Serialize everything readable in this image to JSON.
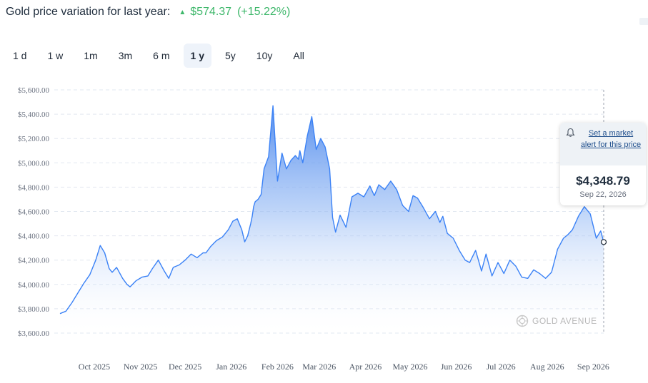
{
  "header": {
    "title": "Gold price variation for last year:",
    "change": "$574.37",
    "change_pct": "(+15.22%)"
  },
  "ranges": [
    {
      "label": "1 d",
      "active": false
    },
    {
      "label": "1 w",
      "active": false
    },
    {
      "label": "1m",
      "active": false
    },
    {
      "label": "3m",
      "active": false
    },
    {
      "label": "6 m",
      "active": false
    },
    {
      "label": "1 y",
      "active": true
    },
    {
      "label": "5y",
      "active": false
    },
    {
      "label": "10y",
      "active": false
    },
    {
      "label": "All",
      "active": false
    }
  ],
  "tooltip": {
    "alert_text": "Set a market alert for this price",
    "price": "$4,348.79",
    "date": "Sep 22, 2026"
  },
  "watermark": "GOLD AVENUE",
  "colors": {
    "line": "#3b82f6",
    "area_top": "#4a86ec",
    "area_bottom": "#ffffff",
    "grid": "#e2e8f0",
    "up": "#3db76a"
  },
  "chart_data": {
    "type": "area",
    "title": "",
    "xlabel": "",
    "ylabel": "",
    "y_ticks": [
      "$3,600.00",
      "$3,800.00",
      "$4,000.00",
      "$4,200.00",
      "$4,400.00",
      "$4,600.00",
      "$4,800.00",
      "$5,000.00",
      "$5,200.00",
      "$5,400.00",
      "$5,600.00"
    ],
    "ylim": [
      3600,
      5600
    ],
    "x_ticks": [
      "Oct 2025",
      "Nov 2025",
      "Dec 2025",
      "Jan 2026",
      "Feb 2026",
      "Mar 2026",
      "Apr 2026",
      "May 2026",
      "Jun 2026",
      "Jul 2026",
      "Aug 2026",
      "Sep 2026"
    ],
    "grid": true,
    "legend": "none",
    "series": [
      {
        "x": [
          "2025-09-22",
          "2025-09-26",
          "2025-09-30",
          "2025-10-04",
          "2025-10-08",
          "2025-10-12",
          "2025-10-16",
          "2025-10-19",
          "2025-10-22",
          "2025-10-25",
          "2025-10-27",
          "2025-10-30",
          "2025-11-03",
          "2025-11-06",
          "2025-11-08",
          "2025-11-12",
          "2025-11-16",
          "2025-11-20",
          "2025-11-23",
          "2025-11-27",
          "2025-12-01",
          "2025-12-04",
          "2025-12-07",
          "2025-12-11",
          "2025-12-15",
          "2025-12-19",
          "2025-12-23",
          "2025-12-27",
          "2025-12-29",
          "2026-01-01",
          "2026-01-05",
          "2026-01-09",
          "2026-01-13",
          "2026-01-16",
          "2026-01-19",
          "2026-01-22",
          "2026-01-24",
          "2026-01-26",
          "2026-01-28",
          "2026-01-29",
          "2026-01-30",
          "2026-01-31",
          "2026-02-02",
          "2026-02-04",
          "2026-02-06",
          "2026-02-09",
          "2026-02-12",
          "2026-02-15",
          "2026-02-18",
          "2026-02-21",
          "2026-02-24",
          "2026-02-27",
          "2026-03-01",
          "2026-03-02",
          "2026-03-04",
          "2026-03-07",
          "2026-03-10",
          "2026-03-13",
          "2026-03-16",
          "2026-03-19",
          "2026-03-22",
          "2026-03-24",
          "2026-03-26",
          "2026-03-29",
          "2026-04-02",
          "2026-04-06",
          "2026-04-10",
          "2026-04-14",
          "2026-04-18",
          "2026-04-21",
          "2026-04-24",
          "2026-04-28",
          "2026-05-02",
          "2026-05-06",
          "2026-05-10",
          "2026-05-14",
          "2026-05-17",
          "2026-05-20",
          "2026-05-24",
          "2026-05-28",
          "2026-06-01",
          "2026-06-04",
          "2026-06-06",
          "2026-06-09",
          "2026-06-13",
          "2026-06-17",
          "2026-06-21",
          "2026-06-24",
          "2026-06-28",
          "2026-07-02",
          "2026-07-05",
          "2026-07-09",
          "2026-07-13",
          "2026-07-17",
          "2026-07-21",
          "2026-07-25",
          "2026-07-29",
          "2026-08-02",
          "2026-08-06",
          "2026-08-10",
          "2026-08-14",
          "2026-08-18",
          "2026-08-22",
          "2026-08-26",
          "2026-08-29",
          "2026-09-01",
          "2026-09-05",
          "2026-09-09",
          "2026-09-13",
          "2026-09-17",
          "2026-09-20",
          "2026-09-22"
        ],
        "y": [
          3760,
          3780,
          3850,
          3930,
          4010,
          4080,
          4200,
          4320,
          4260,
          4130,
          4100,
          4140,
          4050,
          4000,
          3980,
          4030,
          4060,
          4070,
          4130,
          4200,
          4110,
          4050,
          4140,
          4160,
          4200,
          4250,
          4220,
          4260,
          4260,
          4310,
          4360,
          4390,
          4450,
          4520,
          4540,
          4450,
          4350,
          4400,
          4500,
          4560,
          4640,
          4680,
          4700,
          4740,
          4950,
          5050,
          5470,
          4850,
          5080,
          4950,
          5020,
          5060,
          5030,
          5100,
          5000,
          5220,
          5380,
          5110,
          5200,
          5130,
          4950,
          4550,
          4430,
          4570,
          4470,
          4720,
          4750,
          4720,
          4810,
          4730,
          4820,
          4780,
          4850,
          4780,
          4650,
          4600,
          4730,
          4710,
          4630,
          4540,
          4600,
          4510,
          4560,
          4420,
          4380,
          4280,
          4200,
          4180,
          4280,
          4110,
          4250,
          4070,
          4180,
          4090,
          4200,
          4150,
          4060,
          4050,
          4120,
          4090,
          4050,
          4100,
          4290,
          4380,
          4410,
          4450,
          4560,
          4640,
          4580,
          4380,
          4440,
          4348.79
        ]
      }
    ],
    "highlight": {
      "x": "2026-09-22",
      "y": 4348.79
    }
  }
}
